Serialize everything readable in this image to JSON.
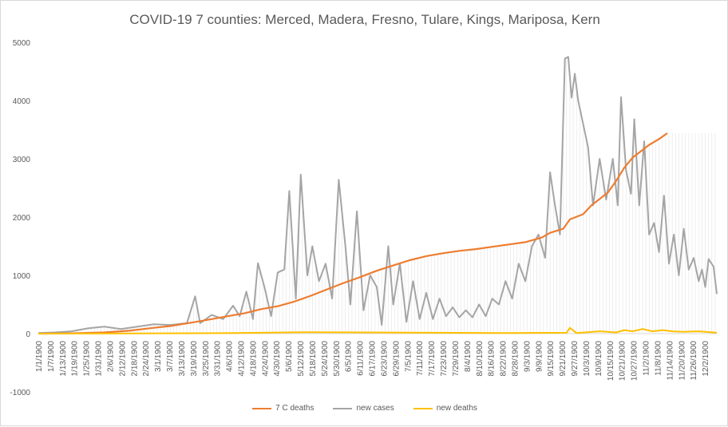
{
  "chart_data": {
    "type": "line",
    "title": "COVID-19 7 counties:  Merced,  Madera,  Fresno, Tulare, Kings, Mariposa, Kern",
    "xlabel": "",
    "ylabel": "",
    "ylim": [
      -1000,
      5000
    ],
    "y_ticks": [
      -1000,
      0,
      1000,
      2000,
      3000,
      4000,
      5000
    ],
    "x_ticks": [
      "1/1/1900",
      "1/7/1900",
      "1/13/1900",
      "1/19/1900",
      "1/25/1900",
      "1/31/1900",
      "2/6/1900",
      "2/12/1900",
      "2/18/1900",
      "2/24/1900",
      "3/1/1900",
      "3/7/1900",
      "3/13/1900",
      "3/19/1900",
      "3/25/1900",
      "3/31/1900",
      "4/6/1900",
      "4/12/1900",
      "4/18/1900",
      "4/24/1900",
      "4/30/1900",
      "5/6/1900",
      "5/12/1900",
      "5/18/1900",
      "5/24/1900",
      "5/30/1900",
      "6/5/1900",
      "6/11/1900",
      "6/17/1900",
      "6/23/1900",
      "6/29/1900",
      "7/5/1900",
      "7/11/1900",
      "7/17/1900",
      "7/23/1900",
      "7/29/1900",
      "8/4/1900",
      "8/10/1900",
      "8/16/1900",
      "8/22/1900",
      "8/28/1900",
      "9/3/1900",
      "9/9/1900",
      "9/15/1900",
      "9/21/1900",
      "9/27/1900",
      "10/3/1900",
      "10/9/1900",
      "10/15/1900",
      "10/21/1900",
      "10/27/1900",
      "11/2/1900",
      "11/8/1900",
      "11/14/1900",
      "11/20/1900",
      "11/26/1900",
      "12/2/1900"
    ],
    "day_count": 346,
    "grid": false,
    "legend_position": "bottom",
    "series": [
      {
        "name": "7 C deaths",
        "color": "#ED7D31",
        "points": [
          [
            0,
            0
          ],
          [
            20,
            5
          ],
          [
            40,
            20
          ],
          [
            55,
            50
          ],
          [
            70,
            100
          ],
          [
            80,
            130
          ],
          [
            95,
            200
          ],
          [
            105,
            250
          ],
          [
            115,
            300
          ],
          [
            125,
            350
          ],
          [
            135,
            420
          ],
          [
            145,
            470
          ],
          [
            155,
            550
          ],
          [
            165,
            650
          ],
          [
            175,
            760
          ],
          [
            185,
            870
          ],
          [
            195,
            970
          ],
          [
            205,
            1080
          ],
          [
            215,
            1170
          ],
          [
            225,
            1260
          ],
          [
            235,
            1330
          ],
          [
            245,
            1380
          ],
          [
            255,
            1420
          ],
          [
            265,
            1450
          ],
          [
            275,
            1490
          ],
          [
            285,
            1530
          ],
          [
            295,
            1570
          ],
          [
            305,
            1650
          ],
          [
            310,
            1730
          ],
          [
            318,
            1800
          ],
          [
            322,
            1960
          ],
          [
            330,
            2050
          ],
          [
            335,
            2200
          ],
          [
            345,
            2420
          ],
          [
            350,
            2620
          ],
          [
            355,
            2850
          ],
          [
            360,
            3020
          ],
          [
            370,
            3240
          ],
          [
            376,
            3340
          ],
          [
            381,
            3440
          ]
        ]
      },
      {
        "name": "new cases",
        "color": "#A5A5A5",
        "points": [
          [
            0,
            10
          ],
          [
            10,
            20
          ],
          [
            20,
            40
          ],
          [
            30,
            90
          ],
          [
            40,
            120
          ],
          [
            50,
            80
          ],
          [
            60,
            120
          ],
          [
            70,
            160
          ],
          [
            80,
            150
          ],
          [
            90,
            180
          ],
          [
            95,
            640
          ],
          [
            98,
            180
          ],
          [
            105,
            320
          ],
          [
            112,
            250
          ],
          [
            118,
            480
          ],
          [
            122,
            300
          ],
          [
            126,
            720
          ],
          [
            130,
            250
          ],
          [
            133,
            1210
          ],
          [
            137,
            800
          ],
          [
            141,
            300
          ],
          [
            145,
            1050
          ],
          [
            149,
            1100
          ],
          [
            152,
            2450
          ],
          [
            156,
            600
          ],
          [
            159,
            2730
          ],
          [
            163,
            1000
          ],
          [
            166,
            1500
          ],
          [
            170,
            900
          ],
          [
            174,
            1200
          ],
          [
            178,
            600
          ],
          [
            182,
            2640
          ],
          [
            186,
            1500
          ],
          [
            189,
            500
          ],
          [
            193,
            2100
          ],
          [
            197,
            400
          ],
          [
            201,
            1000
          ],
          [
            205,
            800
          ],
          [
            208,
            150
          ],
          [
            212,
            1500
          ],
          [
            215,
            500
          ],
          [
            219,
            1200
          ],
          [
            223,
            200
          ],
          [
            227,
            900
          ],
          [
            231,
            250
          ],
          [
            235,
            700
          ],
          [
            239,
            250
          ],
          [
            243,
            600
          ],
          [
            247,
            300
          ],
          [
            251,
            450
          ],
          [
            255,
            280
          ],
          [
            259,
            400
          ],
          [
            263,
            280
          ],
          [
            267,
            500
          ],
          [
            271,
            300
          ],
          [
            275,
            600
          ],
          [
            279,
            500
          ],
          [
            283,
            900
          ],
          [
            287,
            600
          ],
          [
            291,
            1200
          ],
          [
            295,
            900
          ],
          [
            299,
            1500
          ],
          [
            303,
            1700
          ],
          [
            307,
            1300
          ],
          [
            310,
            2770
          ],
          [
            313,
            2200
          ],
          [
            316,
            1700
          ],
          [
            319,
            4720
          ],
          [
            321,
            4750
          ],
          [
            323,
            4050
          ],
          [
            325,
            4460
          ],
          [
            327,
            4000
          ],
          [
            330,
            3600
          ],
          [
            333,
            3200
          ],
          [
            336,
            2200
          ],
          [
            340,
            3000
          ],
          [
            344,
            2300
          ],
          [
            348,
            3000
          ],
          [
            351,
            2200
          ],
          [
            353,
            4060
          ],
          [
            356,
            2800
          ],
          [
            359,
            2400
          ],
          [
            361,
            3680
          ],
          [
            364,
            2200
          ],
          [
            367,
            3300
          ],
          [
            370,
            1700
          ],
          [
            373,
            1900
          ],
          [
            376,
            1400
          ],
          [
            379,
            2370
          ],
          [
            382,
            1200
          ],
          [
            385,
            1700
          ],
          [
            388,
            1000
          ],
          [
            391,
            1800
          ],
          [
            394,
            1100
          ],
          [
            397,
            1300
          ],
          [
            400,
            900
          ],
          [
            402,
            1100
          ],
          [
            404,
            800
          ],
          [
            406,
            1280
          ],
          [
            409,
            1150
          ],
          [
            411,
            680
          ]
        ]
      },
      {
        "name": "new deaths",
        "color": "#FFC000",
        "points": [
          [
            0,
            0
          ],
          [
            40,
            2
          ],
          [
            80,
            5
          ],
          [
            120,
            10
          ],
          [
            160,
            25
          ],
          [
            200,
            20
          ],
          [
            240,
            15
          ],
          [
            280,
            10
          ],
          [
            320,
            15
          ],
          [
            322,
            100
          ],
          [
            326,
            10
          ],
          [
            340,
            40
          ],
          [
            350,
            20
          ],
          [
            355,
            60
          ],
          [
            360,
            40
          ],
          [
            366,
            80
          ],
          [
            372,
            40
          ],
          [
            378,
            60
          ],
          [
            384,
            40
          ],
          [
            390,
            30
          ],
          [
            400,
            40
          ],
          [
            411,
            15
          ]
        ]
      }
    ]
  }
}
